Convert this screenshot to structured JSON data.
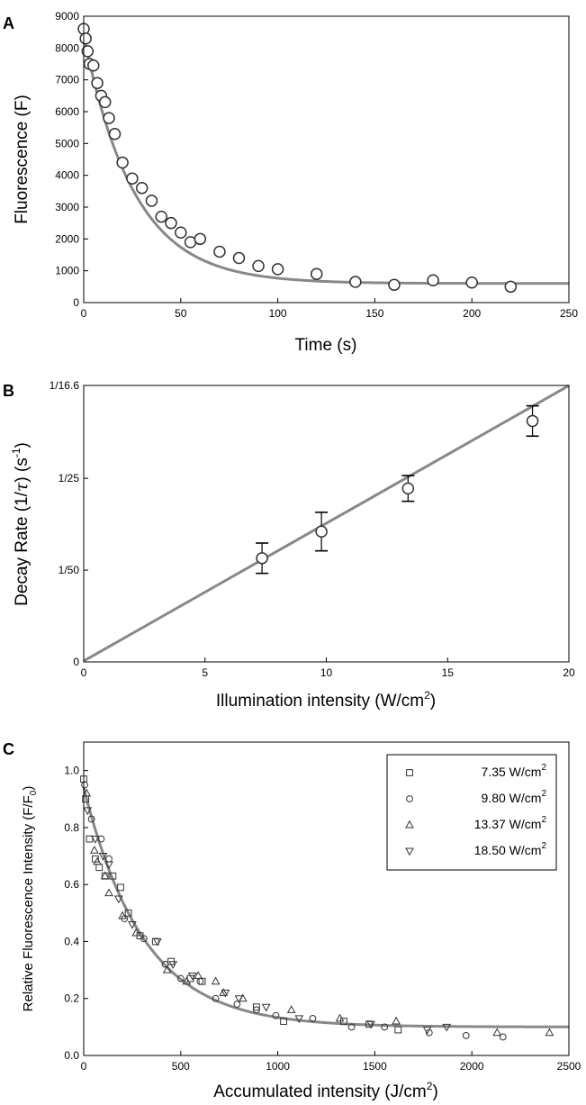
{
  "chart_data": [
    {
      "panel": "A",
      "type": "scatter",
      "xlabel": "Time (s)",
      "ylabel": "Fluorescence (F)",
      "xlim": [
        0,
        250
      ],
      "ylim": [
        0,
        9000
      ],
      "xticks": [
        "0",
        "50",
        "100",
        "150",
        "200",
        "250"
      ],
      "yticks": [
        "0",
        "1000",
        "2000",
        "3000",
        "4000",
        "5000",
        "6000",
        "7000",
        "8000",
        "9000"
      ],
      "series": [
        {
          "marker": "circle",
          "x": [
            0,
            1,
            2,
            3,
            5,
            7,
            9,
            11,
            13,
            16,
            20,
            25,
            30,
            35,
            40,
            45,
            50,
            55,
            60,
            70,
            80,
            90,
            100,
            120,
            140,
            160,
            180,
            200,
            220
          ],
          "y": [
            8600,
            8300,
            7900,
            7500,
            7450,
            6900,
            6500,
            6300,
            5800,
            5300,
            4400,
            3900,
            3600,
            3200,
            2700,
            2500,
            2200,
            1900,
            2000,
            1600,
            1400,
            1150,
            1050,
            900,
            650,
            560,
            700,
            630,
            500
          ]
        }
      ],
      "fit": {
        "type": "exponential",
        "y0": 8400,
        "plateau": 600,
        "tau": 26
      }
    },
    {
      "panel": "B",
      "type": "scatter",
      "xlabel": "Illumination intensity (W/cm",
      "xlabel_sup": "2",
      "xlabel_end": ")",
      "ylabel_parts": [
        "Decay Rate (1/",
        "τ",
        ") (s",
        "-1",
        ")"
      ],
      "xlim": [
        0,
        20
      ],
      "ylim": [
        0,
        0.06024
      ],
      "xticks": [
        "0",
        "5",
        "10",
        "15",
        "20"
      ],
      "yticks": [
        {
          "value": 0,
          "label": "0"
        },
        {
          "value": 0.02,
          "label": "1/50"
        },
        {
          "value": 0.04,
          "label": "1/25"
        },
        {
          "value": 0.06024,
          "label": "1/16.6"
        }
      ],
      "points": [
        {
          "x": 7.35,
          "y": 0.0226,
          "err": 0.0033
        },
        {
          "x": 9.8,
          "y": 0.0284,
          "err": 0.0042
        },
        {
          "x": 13.37,
          "y": 0.0378,
          "err": 0.0028
        },
        {
          "x": 18.5,
          "y": 0.0525,
          "err": 0.0033
        }
      ],
      "fit": {
        "type": "linear",
        "slope": 0.003,
        "intercept": 0.0002
      }
    },
    {
      "panel": "C",
      "type": "scatter",
      "xlabel": "Accumulated intensity (J/cm",
      "xlabel_sup": "2",
      "xlabel_end": ")",
      "ylabel_parts": [
        "Relative Fluorescence Intensity (F/F",
        "0",
        ")"
      ],
      "xlim": [
        0,
        2500
      ],
      "ylim": [
        0,
        1.1
      ],
      "xticks": [
        "0",
        "500",
        "1000",
        "1500",
        "2000",
        "2500"
      ],
      "yticks": [
        "0.0",
        "0.2",
        "0.4",
        "0.6",
        "0.8",
        "1.0"
      ],
      "legend": {
        "position": "top-right"
      },
      "series": [
        {
          "name": "7.35 W/cm",
          "name_sup": "2",
          "marker": "square",
          "x": [
            0,
            10,
            30,
            60,
            80,
            110,
            150,
            190,
            230,
            290,
            370,
            450,
            550,
            610,
            890,
            1030,
            1340,
            1470,
            1620
          ],
          "y": [
            0.97,
            0.9,
            0.76,
            0.69,
            0.66,
            0.63,
            0.63,
            0.59,
            0.5,
            0.42,
            0.4,
            0.33,
            0.27,
            0.26,
            0.17,
            0.12,
            0.12,
            0.11,
            0.09
          ]
        },
        {
          "name": "9.80 W/cm",
          "name_sup": "2",
          "marker": "circle",
          "x": [
            5,
            40,
            90,
            130,
            210,
            310,
            420,
            500,
            600,
            680,
            790,
            890,
            990,
            1180,
            1380,
            1550,
            1780,
            1970,
            2160
          ],
          "y": [
            0.95,
            0.83,
            0.76,
            0.69,
            0.48,
            0.41,
            0.32,
            0.27,
            0.26,
            0.2,
            0.18,
            0.16,
            0.14,
            0.13,
            0.1,
            0.1,
            0.08,
            0.07,
            0.065
          ]
        },
        {
          "name": "13.37 W/cm",
          "name_sup": "2",
          "marker": "triangle-up",
          "x": [
            15,
            55,
            70,
            110,
            130,
            200,
            270,
            430,
            530,
            590,
            680,
            720,
            820,
            1070,
            1320,
            1610,
            2130,
            2400
          ],
          "y": [
            0.92,
            0.72,
            0.68,
            0.63,
            0.57,
            0.49,
            0.43,
            0.3,
            0.26,
            0.28,
            0.26,
            0.22,
            0.2,
            0.16,
            0.13,
            0.12,
            0.08,
            0.08
          ]
        },
        {
          "name": "18.50 W/cm",
          "name_sup": "2",
          "marker": "triangle-down",
          "x": [
            20,
            60,
            100,
            130,
            180,
            250,
            380,
            460,
            560,
            730,
            800,
            940,
            1110,
            1480,
            1770,
            1870
          ],
          "y": [
            0.86,
            0.76,
            0.7,
            0.67,
            0.55,
            0.46,
            0.4,
            0.32,
            0.28,
            0.22,
            0.2,
            0.17,
            0.13,
            0.11,
            0.09,
            0.1
          ]
        }
      ],
      "fit": {
        "type": "exponential",
        "y0": 0.94,
        "plateau": 0.1,
        "tau": 310
      }
    }
  ]
}
